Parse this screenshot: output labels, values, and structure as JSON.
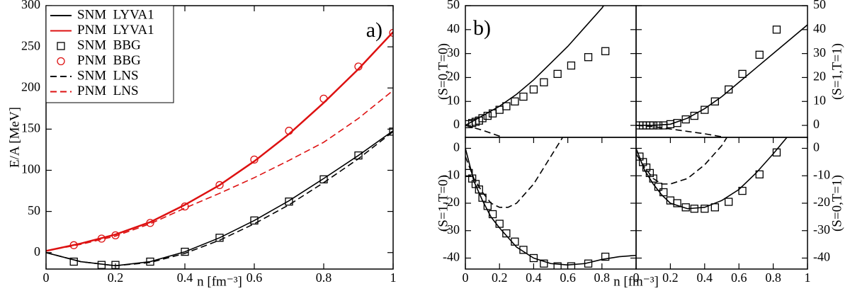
{
  "chart_data": [
    {
      "type": "line",
      "ylabel": "E/A [MeV]",
      "xlabel": "n [fm⁻³]",
      "annotation": "a)",
      "xlim": [
        0,
        1
      ],
      "xticks": [
        0,
        0.2,
        0.4,
        0.6,
        0.8,
        1
      ],
      "ylim": [
        -20,
        300
      ],
      "yticks": [
        0,
        50,
        100,
        150,
        200,
        250,
        300
      ],
      "yaxis_side": "left",
      "legend": "upper left",
      "series": [
        {
          "name": "SNM  LYVA1",
          "color": "#000000",
          "style": "solid",
          "x": [
            0,
            0.1,
            0.2,
            0.3,
            0.4,
            0.5,
            0.6,
            0.7,
            0.8,
            0.9,
            1.0
          ],
          "values": [
            0,
            -11,
            -16,
            -11,
            1,
            18,
            39,
            63,
            90,
            118,
            148
          ]
        },
        {
          "name": "PNM  LYVA1",
          "color": "#dd1111",
          "style": "solid",
          "x": [
            0,
            0.1,
            0.2,
            0.3,
            0.4,
            0.5,
            0.6,
            0.7,
            0.8,
            0.9,
            1.0
          ],
          "values": [
            2,
            11,
            22,
            37,
            58,
            82,
            111,
            144,
            182,
            223,
            268
          ]
        },
        {
          "name": "SNM  BBG",
          "color": "#000000",
          "marker": "square",
          "x": [
            0.08,
            0.16,
            0.2,
            0.3,
            0.4,
            0.5,
            0.6,
            0.7,
            0.8,
            0.9,
            1.0
          ],
          "values": [
            -11,
            -15,
            -15,
            -11,
            1,
            18,
            39,
            62,
            89,
            118,
            147
          ]
        },
        {
          "name": "PNM  BBG",
          "color": "#dd1111",
          "marker": "circle",
          "x": [
            0.08,
            0.16,
            0.2,
            0.3,
            0.4,
            0.5,
            0.6,
            0.7,
            0.8,
            0.9,
            1.0
          ],
          "values": [
            9,
            17,
            21,
            36,
            56,
            82,
            113,
            148,
            187,
            226,
            267
          ]
        },
        {
          "name": "SNM  LNS",
          "color": "#000000",
          "style": "dashed",
          "x": [
            0,
            0.1,
            0.2,
            0.3,
            0.4,
            0.5,
            0.6,
            0.7,
            0.8,
            0.9,
            1.0
          ],
          "values": [
            0,
            -11,
            -16,
            -12,
            -1,
            15,
            35,
            58,
            85,
            114,
            147
          ]
        },
        {
          "name": "PNM  LNS",
          "color": "#dd1111",
          "style": "dashed",
          "x": [
            0,
            0.1,
            0.2,
            0.3,
            0.4,
            0.5,
            0.6,
            0.7,
            0.8,
            0.9,
            1.0
          ],
          "values": [
            2,
            10,
            20,
            35,
            54,
            72,
            91,
            112,
            134,
            163,
            197
          ]
        }
      ]
    },
    {
      "type": "line",
      "ylabel": "(S=0,T=0)",
      "annotation": "b)",
      "xlim": [
        0,
        1
      ],
      "ylim": [
        -5,
        50
      ],
      "yticks": [
        0,
        10,
        20,
        30,
        40,
        50
      ],
      "yaxis_side": "left",
      "series": [
        {
          "color": "#000000",
          "style": "solid",
          "x": [
            0,
            0.1,
            0.2,
            0.3,
            0.4,
            0.5,
            0.6,
            0.7,
            0.8,
            0.81
          ],
          "values": [
            0,
            4,
            8,
            13,
            19,
            26,
            33,
            41,
            49,
            50
          ]
        },
        {
          "color": "#000000",
          "style": "dashed",
          "x": [
            0,
            0.1,
            0.2,
            0.22
          ],
          "values": [
            0,
            -2,
            -4.5,
            -5
          ]
        },
        {
          "color": "#000000",
          "marker": "square",
          "x": [
            0.02,
            0.04,
            0.06,
            0.08,
            0.1,
            0.13,
            0.16,
            0.2,
            0.24,
            0.29,
            0.34,
            0.4,
            0.46,
            0.54,
            0.62,
            0.72,
            0.82
          ],
          "values": [
            0.5,
            1,
            1.5,
            2,
            3,
            4,
            5,
            6.5,
            8,
            10,
            12,
            15,
            18,
            21.5,
            25,
            28.5,
            31
          ]
        }
      ]
    },
    {
      "type": "line",
      "ylabel": "(S=1,T=1)",
      "xlim": [
        0,
        1
      ],
      "ylim": [
        -5,
        50
      ],
      "yticks": [
        0,
        10,
        20,
        30,
        40,
        50
      ],
      "yaxis_side": "right",
      "series": [
        {
          "color": "#000000",
          "style": "solid",
          "x": [
            0,
            0.1,
            0.2,
            0.3,
            0.4,
            0.5,
            0.6,
            0.7,
            0.8,
            0.9,
            1.0
          ],
          "values": [
            0,
            0,
            0.5,
            3,
            7,
            12,
            18,
            24,
            30,
            36,
            42
          ]
        },
        {
          "color": "#000000",
          "style": "dashed",
          "x": [
            0,
            0.1,
            0.2,
            0.3,
            0.4,
            0.52
          ],
          "values": [
            0,
            -0.5,
            -1.5,
            -2.5,
            -3.5,
            -5
          ]
        },
        {
          "color": "#000000",
          "marker": "square",
          "x": [
            0.02,
            0.04,
            0.06,
            0.08,
            0.1,
            0.13,
            0.16,
            0.2,
            0.24,
            0.29,
            0.34,
            0.4,
            0.46,
            0.54,
            0.62,
            0.72,
            0.82
          ],
          "values": [
            0,
            0,
            0,
            0,
            0,
            0,
            0,
            0.5,
            1,
            2.5,
            4,
            6.5,
            10,
            15,
            21.5,
            29.5,
            40
          ]
        }
      ]
    },
    {
      "type": "line",
      "ylabel": "(S=1,T=0)",
      "xlabel": "n [fm⁻³]",
      "xlim": [
        0,
        1
      ],
      "xticks": [
        0,
        0.2,
        0.4,
        0.6,
        0.8
      ],
      "ylim": [
        -44,
        4
      ],
      "yticks": [
        -40,
        -30,
        -20,
        -10,
        0
      ],
      "yaxis_side": "left",
      "series": [
        {
          "color": "#000000",
          "style": "solid",
          "x": [
            0,
            0.05,
            0.1,
            0.15,
            0.2,
            0.3,
            0.4,
            0.5,
            0.6,
            0.7,
            0.8,
            0.9,
            1.0
          ],
          "values": [
            0,
            -12,
            -19,
            -25,
            -29,
            -36,
            -40,
            -42,
            -42.5,
            -42,
            -40.5,
            -39.5,
            -39
          ]
        },
        {
          "color": "#000000",
          "style": "dashed",
          "x": [
            0,
            0.05,
            0.1,
            0.15,
            0.2,
            0.25,
            0.3,
            0.4,
            0.5,
            0.57
          ],
          "values": [
            -3,
            -11,
            -16,
            -20,
            -21.5,
            -21.5,
            -20,
            -13,
            -3,
            4
          ]
        },
        {
          "color": "#000000",
          "marker": "square",
          "x": [
            0.02,
            0.04,
            0.06,
            0.08,
            0.1,
            0.13,
            0.16,
            0.2,
            0.24,
            0.29,
            0.34,
            0.4,
            0.46,
            0.54,
            0.62,
            0.72,
            0.82
          ],
          "values": [
            -9,
            -11,
            -13,
            -15,
            -18,
            -21,
            -24,
            -27.5,
            -31,
            -34,
            -37,
            -40,
            -42,
            -43,
            -43,
            -42,
            -39.5
          ]
        }
      ]
    },
    {
      "type": "line",
      "ylabel": "(S=0,T=1)",
      "xlim": [
        0,
        1
      ],
      "xticks": [
        0,
        0.2,
        0.4,
        0.6,
        0.8,
        1
      ],
      "ylim": [
        -44,
        4
      ],
      "yticks": [
        -40,
        -30,
        -20,
        -10,
        0
      ],
      "yaxis_side": "right",
      "series": [
        {
          "color": "#000000",
          "style": "solid",
          "x": [
            0,
            0.05,
            0.1,
            0.15,
            0.2,
            0.3,
            0.4,
            0.5,
            0.6,
            0.7,
            0.8,
            0.88
          ],
          "values": [
            0,
            -8,
            -13,
            -17,
            -20,
            -22,
            -21.5,
            -19,
            -15,
            -9,
            -2,
            4
          ]
        },
        {
          "color": "#000000",
          "style": "dashed",
          "x": [
            0,
            0.05,
            0.1,
            0.15,
            0.2,
            0.3,
            0.4,
            0.5,
            0.53
          ],
          "values": [
            -2,
            -7,
            -11,
            -13,
            -13,
            -11,
            -6,
            1,
            4
          ]
        },
        {
          "color": "#000000",
          "marker": "square",
          "x": [
            0.02,
            0.04,
            0.06,
            0.08,
            0.1,
            0.13,
            0.16,
            0.2,
            0.24,
            0.29,
            0.34,
            0.4,
            0.46,
            0.54,
            0.62,
            0.72,
            0.82
          ],
          "values": [
            -3,
            -5,
            -7,
            -9,
            -11,
            -14,
            -16,
            -19,
            -20,
            -21.5,
            -22,
            -22,
            -21.5,
            -19.5,
            -15.5,
            -9.5,
            -1.5
          ]
        }
      ]
    }
  ]
}
